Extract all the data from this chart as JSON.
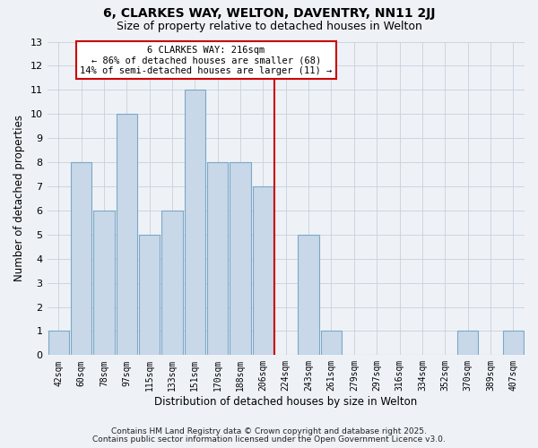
{
  "title": "6, CLARKES WAY, WELTON, DAVENTRY, NN11 2JJ",
  "subtitle": "Size of property relative to detached houses in Welton",
  "xlabel": "Distribution of detached houses by size in Welton",
  "ylabel": "Number of detached properties",
  "bin_labels": [
    "42sqm",
    "60sqm",
    "78sqm",
    "97sqm",
    "115sqm",
    "133sqm",
    "151sqm",
    "170sqm",
    "188sqm",
    "206sqm",
    "224sqm",
    "243sqm",
    "261sqm",
    "279sqm",
    "297sqm",
    "316sqm",
    "334sqm",
    "352sqm",
    "370sqm",
    "389sqm",
    "407sqm"
  ],
  "bar_heights": [
    1,
    8,
    6,
    10,
    5,
    6,
    11,
    8,
    8,
    7,
    0,
    5,
    1,
    0,
    0,
    0,
    0,
    0,
    1,
    0,
    1
  ],
  "bar_color": "#c8d8e8",
  "bar_edge_color": "#7aa8c8",
  "background_color": "#eef2f7",
  "grid_color": "#c8d0dc",
  "red_line_x": 9.5,
  "red_line_color": "#cc0000",
  "ylim": [
    0,
    13
  ],
  "yticks": [
    0,
    1,
    2,
    3,
    4,
    5,
    6,
    7,
    8,
    9,
    10,
    11,
    12,
    13
  ],
  "annotation_title": "6 CLARKES WAY: 216sqm",
  "annotation_line1": "← 86% of detached houses are smaller (68)",
  "annotation_line2": "14% of semi-detached houses are larger (11) →",
  "annotation_box_color": "#ffffff",
  "annotation_box_edge_color": "#cc0000",
  "footer1": "Contains HM Land Registry data © Crown copyright and database right 2025.",
  "footer2": "Contains public sector information licensed under the Open Government Licence v3.0.",
  "title_fontsize": 10,
  "subtitle_fontsize": 9,
  "annotation_fontsize": 7.5,
  "tick_fontsize": 7,
  "axis_label_fontsize": 8.5,
  "footer_fontsize": 6.5
}
